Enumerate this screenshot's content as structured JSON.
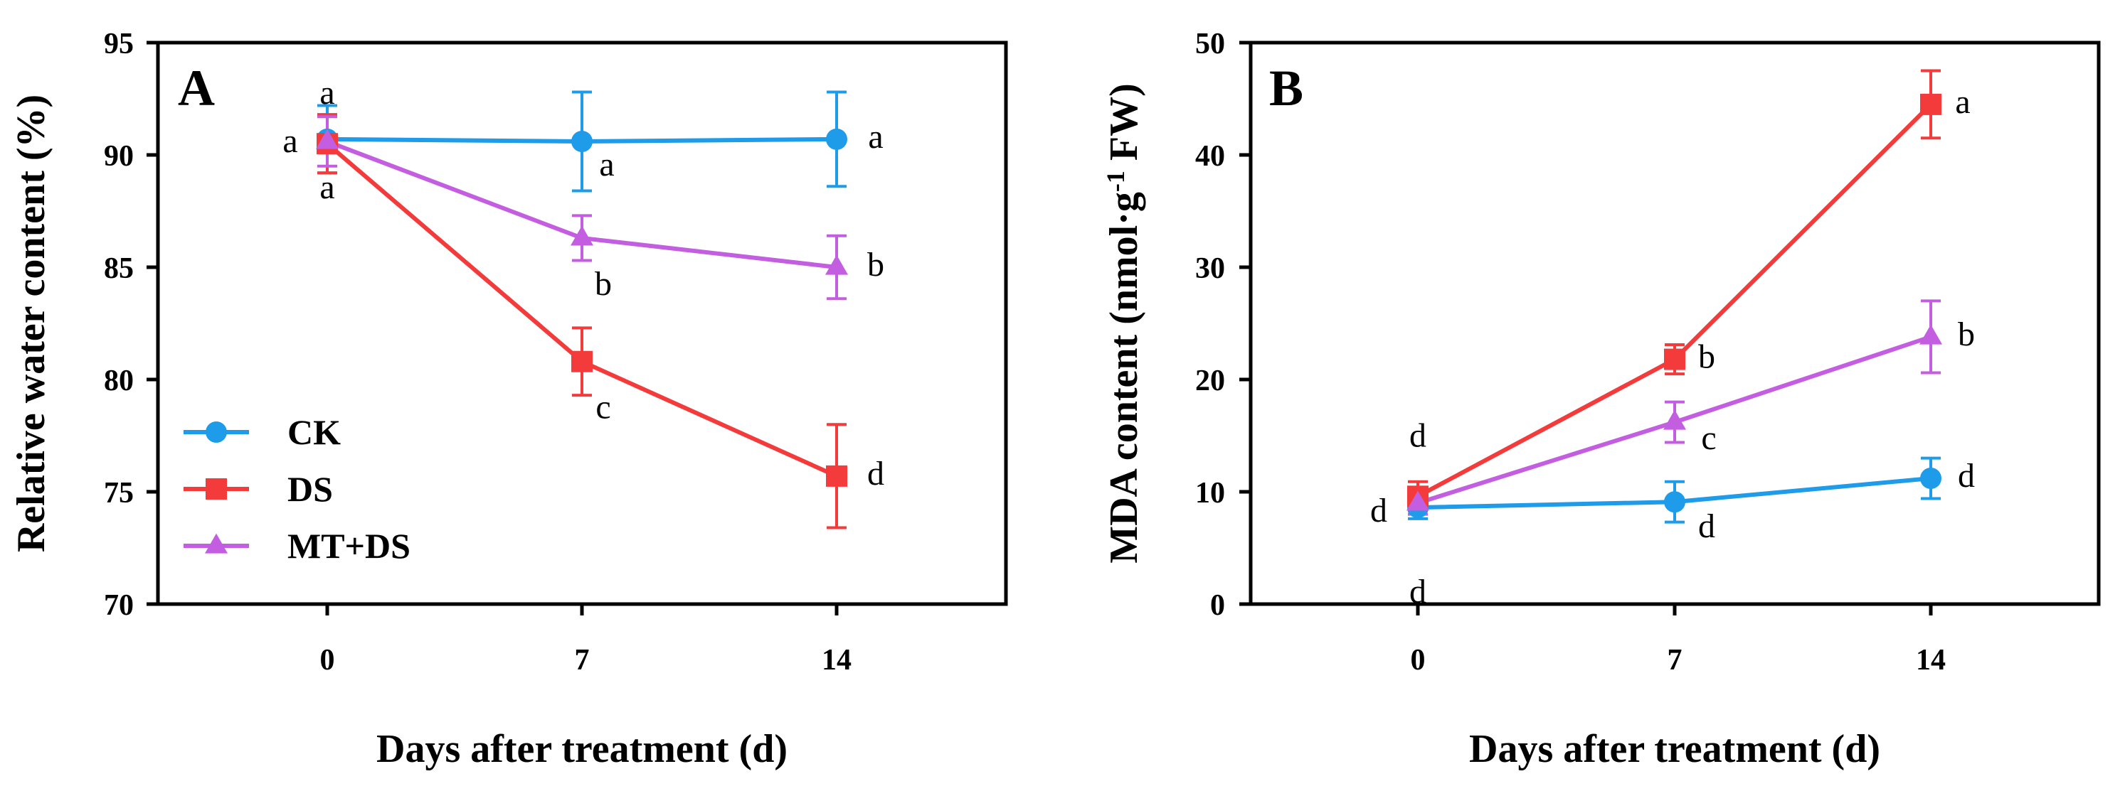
{
  "chart_data": [
    {
      "panel": "A",
      "type": "line",
      "xlabel": "Days after treatment (d)",
      "ylabel": "Relative water content (%)",
      "categories": [
        "0",
        "7",
        "14"
      ],
      "ylim": [
        70,
        95
      ],
      "yticks": [
        "70",
        "75",
        "80",
        "85",
        "90",
        "95"
      ],
      "series": [
        {
          "name": "CK",
          "color": "#1e9be9",
          "marker": "circle",
          "values": [
            90.7,
            90.6,
            90.7
          ],
          "errors": [
            1.5,
            2.2,
            2.1
          ],
          "letters": [
            "a",
            "a",
            "a"
          ]
        },
        {
          "name": "DS",
          "color": "#f33b3b",
          "marker": "square",
          "values": [
            90.5,
            80.8,
            75.7
          ],
          "errors": [
            1.3,
            1.5,
            2.3
          ],
          "letters": [
            "a",
            "c",
            "d"
          ]
        },
        {
          "name": "MT+DS",
          "color": "#c45ee0",
          "marker": "triangle",
          "values": [
            90.6,
            86.3,
            85.0
          ],
          "errors": [
            1.1,
            1.0,
            1.4
          ],
          "letters": [
            "a",
            "b",
            "b"
          ]
        }
      ]
    },
    {
      "panel": "B",
      "type": "line",
      "xlabel": "Days after treatment (d)",
      "ylabel": "MDA content (nmol·g-1 FW)",
      "ylabel_parts": {
        "main": "MDA content  (nmol·g",
        "sup1": "-1",
        "tail": " FW)"
      },
      "categories": [
        "0",
        "7",
        "14"
      ],
      "ylim": [
        0,
        50
      ],
      "yticks": [
        "0",
        "10",
        "20",
        "30",
        "40",
        "50"
      ],
      "series": [
        {
          "name": "CK",
          "color": "#1e9be9",
          "marker": "circle",
          "values": [
            8.6,
            9.1,
            11.2
          ],
          "errors": [
            1.0,
            1.8,
            1.8
          ],
          "letters": [
            "d",
            "d",
            "d"
          ]
        },
        {
          "name": "DS",
          "color": "#f33b3b",
          "marker": "square",
          "values": [
            9.6,
            21.8,
            44.5
          ],
          "errors": [
            1.3,
            1.3,
            3.0
          ],
          "letters": [
            "d",
            "b",
            "a"
          ]
        },
        {
          "name": "MT+DS",
          "color": "#c45ee0",
          "marker": "triangle",
          "values": [
            9.0,
            16.2,
            23.8
          ],
          "errors": [
            1.0,
            1.8,
            3.2
          ],
          "letters": [
            "d",
            "c",
            "b"
          ]
        }
      ]
    }
  ]
}
